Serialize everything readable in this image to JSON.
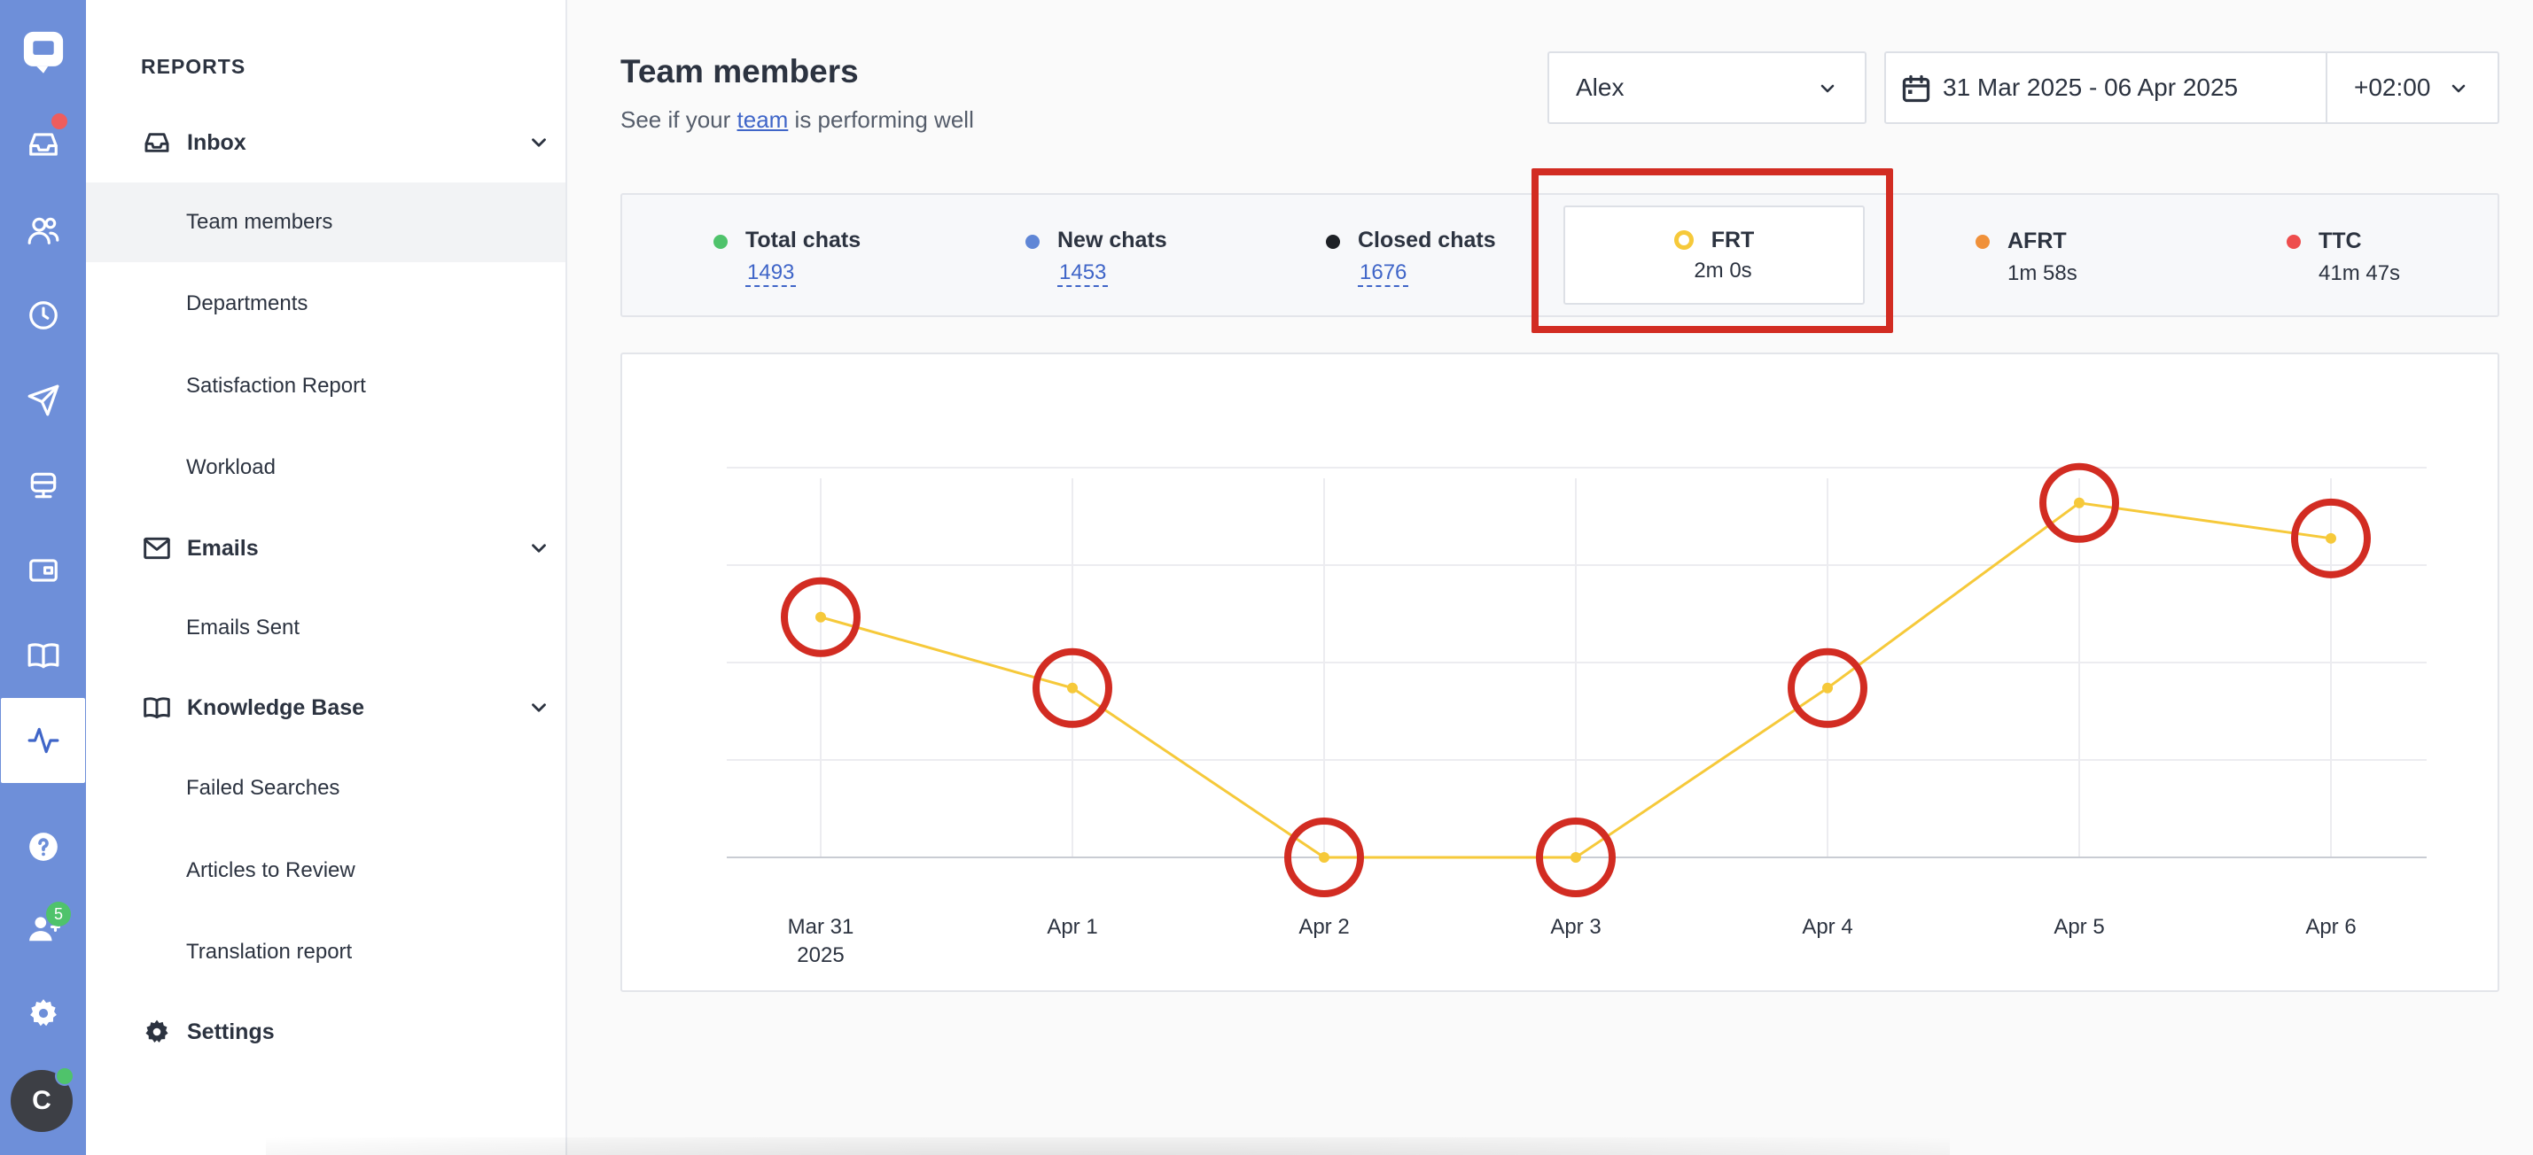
{
  "rail": {
    "icons": [
      {
        "name": "chat-logo-icon"
      },
      {
        "name": "inbox-icon"
      },
      {
        "name": "contacts-icon"
      },
      {
        "name": "history-icon"
      },
      {
        "name": "send-icon"
      },
      {
        "name": "bot-icon"
      },
      {
        "name": "widget-icon"
      },
      {
        "name": "knowledge-base-icon"
      },
      {
        "name": "reports-icon"
      },
      {
        "name": "help-icon"
      },
      {
        "name": "team-icon"
      },
      {
        "name": "settings-icon"
      }
    ],
    "team_badge": "5",
    "avatar_initial": "C"
  },
  "sidebar": {
    "heading": "REPORTS",
    "sections": [
      {
        "label": "Inbox",
        "items": [
          "Team members",
          "Departments",
          "Satisfaction Report",
          "Workload"
        ]
      },
      {
        "label": "Emails",
        "items": [
          "Emails Sent"
        ]
      },
      {
        "label": "Knowledge Base",
        "items": [
          "Failed Searches",
          "Articles to Review",
          "Translation report"
        ]
      }
    ],
    "settings_label": "Settings",
    "active_item": "Team members"
  },
  "header": {
    "title": "Team members",
    "subtitle_pre": "See if your ",
    "subtitle_link": "team",
    "subtitle_post": " is performing well",
    "user_select": "Alex",
    "date_range": "31 Mar 2025 - 06 Apr 2025",
    "timezone": "+02:00"
  },
  "metrics": [
    {
      "label": "Total chats",
      "value": "1493",
      "color": "#4fc36b",
      "linked": true
    },
    {
      "label": "New chats",
      "value": "1453",
      "color": "#5f86d6",
      "linked": true
    },
    {
      "label": "Closed chats",
      "value": "1676",
      "color": "#1e2126",
      "linked": true
    },
    {
      "label": "FRT",
      "value": "2m 0s",
      "color": "#f6c93a",
      "selected": true
    },
    {
      "label": "AFRT",
      "value": "1m 58s",
      "color": "#f0913a",
      "linked": false
    },
    {
      "label": "TTC",
      "value": "41m 47s",
      "color": "#ee4d4d",
      "linked": false
    }
  ],
  "chart_data": {
    "type": "line",
    "categories": [
      "Mar 31\n2025",
      "Apr 1",
      "Apr 2",
      "Apr 3",
      "Apr 4",
      "Apr 5",
      "Apr 6"
    ],
    "series": [
      {
        "values": [
          2.44,
          1.72,
          0.0,
          0.0,
          1.72,
          3.6,
          3.24
        ],
        "color": "#f6c93a"
      }
    ],
    "ylim": [
      0,
      3.85
    ],
    "grid": true,
    "y_tick_labels_shown": false,
    "highlighted_points": [
      0,
      1,
      2,
      3,
      4,
      5,
      6
    ],
    "highlight_color": "#d22c22"
  }
}
